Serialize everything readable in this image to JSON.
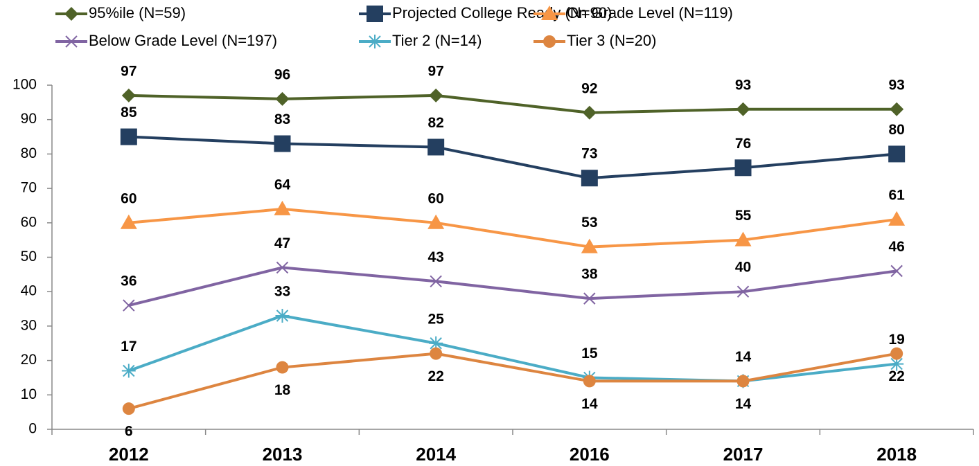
{
  "chart_data": {
    "type": "line",
    "categories": [
      "2012",
      "2013",
      "2014",
      "2016",
      "2017",
      "2018"
    ],
    "series": [
      {
        "name": "95%ile (N=59)",
        "color": "#4f6228",
        "marker": "diamond",
        "label_position": "above",
        "values": [
          97,
          96,
          97,
          92,
          93,
          93
        ]
      },
      {
        "name": "Projected College Ready (N=90)",
        "color": "#243f60",
        "marker": "square",
        "label_position": "above",
        "values": [
          85,
          83,
          82,
          73,
          76,
          80
        ]
      },
      {
        "name": "On Grade Level (N=119)",
        "color": "#f79646",
        "marker": "triangle",
        "label_position": "above",
        "values": [
          60,
          64,
          60,
          53,
          55,
          61
        ]
      },
      {
        "name": "Below Grade Level (N=197)",
        "color": "#8064a2",
        "marker": "x",
        "label_position": "above",
        "values": [
          36,
          47,
          43,
          38,
          40,
          46
        ]
      },
      {
        "name": "Tier 2 (N=14)",
        "color": "#4bacc6",
        "marker": "star",
        "label_position": "above",
        "values": [
          17,
          33,
          25,
          15,
          14,
          19
        ]
      },
      {
        "name": "Tier 3 (N=20)",
        "color": "#dd8540",
        "marker": "circle",
        "label_position": "below",
        "values": [
          6,
          18,
          22,
          14,
          14,
          22
        ]
      }
    ],
    "ylim": [
      0,
      100
    ],
    "yticks": [
      0,
      10,
      20,
      30,
      40,
      50,
      60,
      70,
      80,
      90,
      100
    ],
    "grid": false,
    "legend": "top"
  }
}
